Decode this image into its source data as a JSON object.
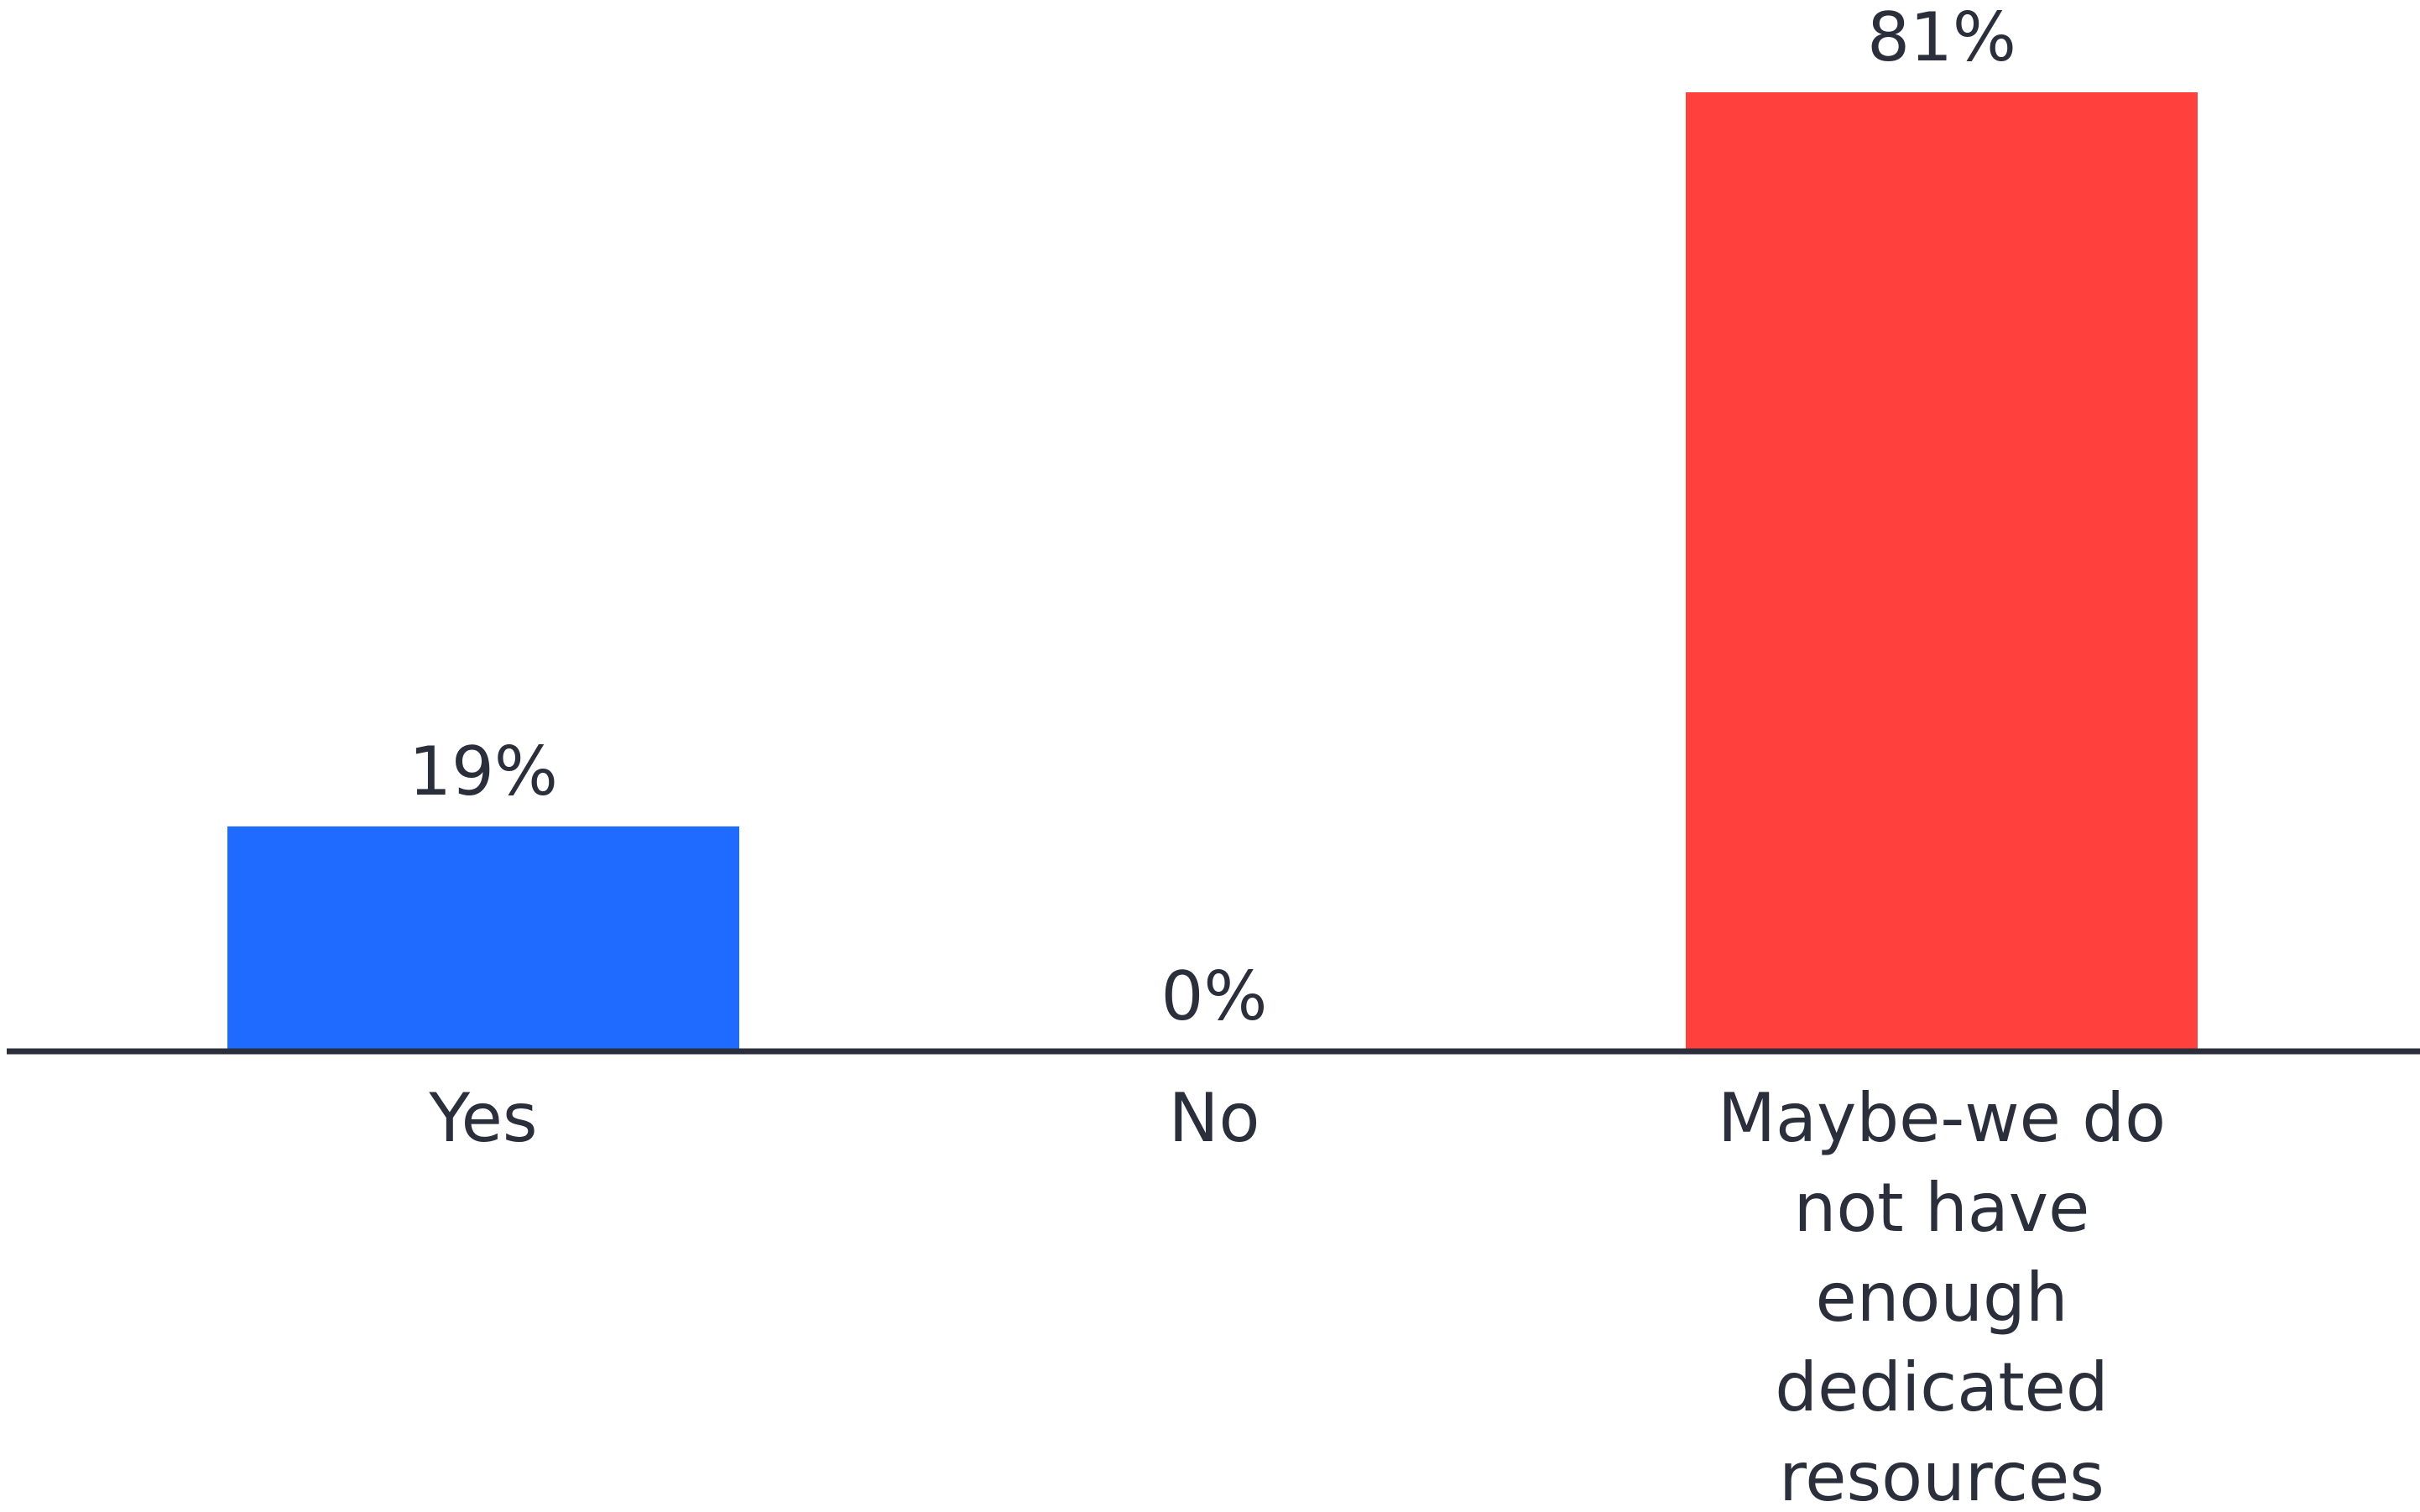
{
  "chart_data": {
    "type": "bar",
    "categories": [
      "Yes",
      "No",
      "Maybe-we do not have enough dedicated resources"
    ],
    "category_label_lines": [
      [
        "Yes"
      ],
      [
        "No"
      ],
      [
        "Maybe-we do",
        "not have",
        "enough",
        "dedicated",
        "resources"
      ]
    ],
    "values": [
      19,
      0,
      81
    ],
    "value_labels": [
      "19%",
      "0%",
      "81%"
    ],
    "unit": "%",
    "ylim": [
      0,
      81
    ],
    "colors": [
      "#1f6bff",
      "#1f6bff",
      "#ff403d"
    ],
    "axis_color": "#2b2e3b",
    "text_color": "#2b2e3b",
    "grid": false,
    "legend": "none",
    "title": "",
    "xlabel": "",
    "ylabel": ""
  }
}
